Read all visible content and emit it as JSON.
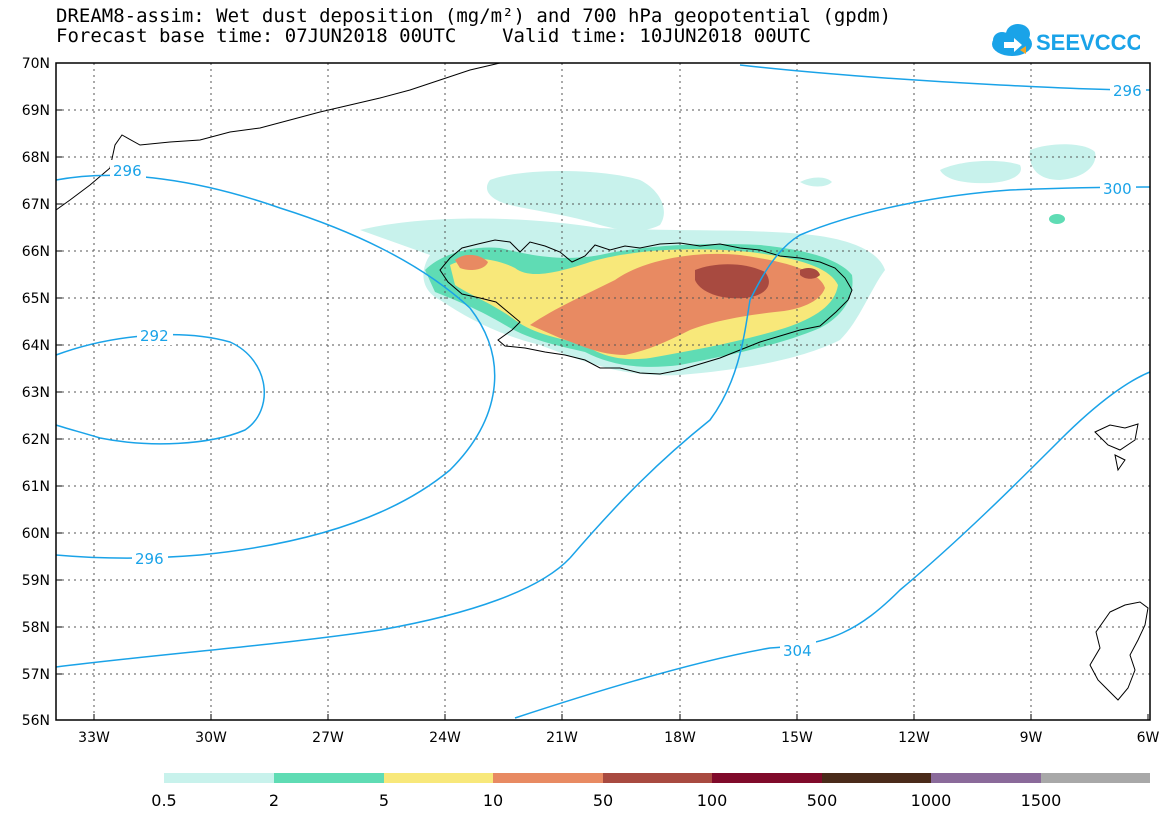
{
  "title": {
    "line1": "DREAM8-assim: Wet dust deposition (mg/m²) and 700 hPa geopotential (gpdm)",
    "line2": "Forecast base time: 07JUN2018 00UTC    Valid time: 10JUN2018 00UTC"
  },
  "logo": {
    "text": "SEEVCCC",
    "icon": "cloud-icon",
    "color": "#1aa3e8"
  },
  "map": {
    "lon_range": [
      -34,
      -6
    ],
    "lat_range": [
      56,
      70
    ],
    "grid": true,
    "lat_labels": [
      "70N",
      "69N",
      "68N",
      "67N",
      "66N",
      "65N",
      "64N",
      "63N",
      "62N",
      "61N",
      "60N",
      "59N",
      "58N",
      "57N",
      "56N"
    ],
    "lon_labels": [
      "33W",
      "30W",
      "27W",
      "24W",
      "21W",
      "18W",
      "15W",
      "12W",
      "9W",
      "6W"
    ],
    "contour_color": "#1aa3e8",
    "contour_labels": [
      "296",
      "296",
      "292",
      "296",
      "300",
      "304"
    ]
  },
  "colorbar": {
    "colors": [
      "#c8f2ec",
      "#5fdcb4",
      "#f8e87a",
      "#e88a62",
      "#a84a40",
      "#800a2a",
      "#4a2a1a",
      "#8a6a9a",
      "#a8a8a8"
    ],
    "labels": [
      "0.5",
      "2",
      "5",
      "10",
      "50",
      "100",
      "500",
      "1000",
      "1500"
    ]
  }
}
